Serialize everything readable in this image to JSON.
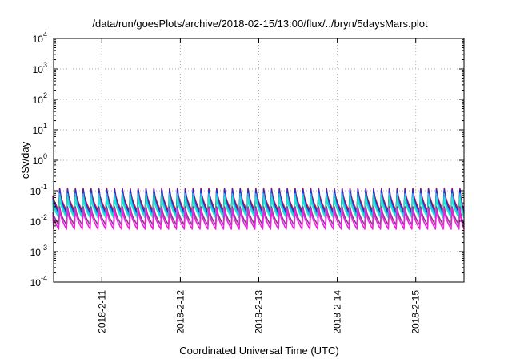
{
  "chart_data": {
    "type": "line",
    "title": "/data/run/goesPlots/archive/2018-02-15/13:00/flux/../bryn/5daysMars.plot",
    "xlabel": "Coordinated Universal Time (UTC)",
    "ylabel": "cSv/day",
    "yscale": "log",
    "ylim": [
      0.0001,
      10000
    ],
    "xlim": [
      "2018-02-10T09:15",
      "2018-02-15T14:45"
    ],
    "grid": true,
    "x_ticks": [
      {
        "value": "2018-02-11",
        "label": "2018-2-11"
      },
      {
        "value": "2018-02-12",
        "label": "2018-2-12"
      },
      {
        "value": "2018-02-13",
        "label": "2018-2-13"
      },
      {
        "value": "2018-02-14",
        "label": "2018-2-14"
      },
      {
        "value": "2018-02-15",
        "label": "2018-2-15"
      }
    ],
    "y_ticks": [
      {
        "value": 0.0001,
        "base": "10",
        "exp": "-4"
      },
      {
        "value": 0.001,
        "base": "10",
        "exp": "-3"
      },
      {
        "value": 0.01,
        "base": "10",
        "exp": "-2"
      },
      {
        "value": 0.1,
        "base": "10",
        "exp": "-1"
      },
      {
        "value": 1,
        "base": "10",
        "exp": "0"
      },
      {
        "value": 10,
        "base": "10",
        "exp": "1"
      },
      {
        "value": 100,
        "base": "10",
        "exp": "2"
      },
      {
        "value": 1000,
        "base": "10",
        "exp": "3"
      },
      {
        "value": 10000,
        "base": "10",
        "exp": "4"
      }
    ],
    "sawtooth_period_hours": 2.4,
    "series": [
      {
        "color": "#e8101a",
        "peak": 0.12,
        "trough": 0.022
      },
      {
        "color": "#1f2fe0",
        "peak": 0.11,
        "trough": 0.018
      },
      {
        "color": "#1fb8e8",
        "peak": 0.08,
        "trough": 0.015
      },
      {
        "color": "#20e8c8",
        "peak": 0.06,
        "trough": 0.013
      },
      {
        "color": "#8a3a8a",
        "peak": 0.03,
        "trough": 0.0075
      },
      {
        "color": "#f020e0",
        "peak": 0.025,
        "trough": 0.0055
      }
    ]
  }
}
